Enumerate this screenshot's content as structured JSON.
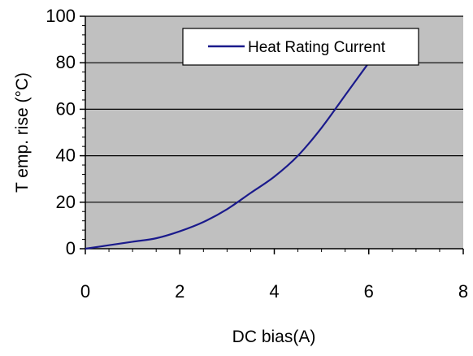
{
  "chart_data": {
    "type": "line",
    "title": "",
    "xlabel": "DC bias(A)",
    "ylabel": "T emp. rise (°C)",
    "xlim": [
      0,
      8
    ],
    "ylim": [
      0,
      100
    ],
    "x_ticks": [
      0,
      2,
      4,
      6,
      8
    ],
    "y_ticks": [
      0,
      20,
      40,
      60,
      80,
      100
    ],
    "grid": "horizontal",
    "legend_position": "top-right",
    "plot_background": "#c0c0c0",
    "series": [
      {
        "name": "Heat Rating Current",
        "color": "#1a1a8c",
        "x": [
          0,
          0.5,
          1,
          1.5,
          2,
          2.5,
          3,
          3.5,
          4,
          4.5,
          5,
          5.5,
          6
        ],
        "y": [
          0,
          1.5,
          3,
          4.5,
          7.5,
          11.5,
          17,
          24,
          31,
          40,
          52,
          66,
          80
        ]
      }
    ]
  }
}
